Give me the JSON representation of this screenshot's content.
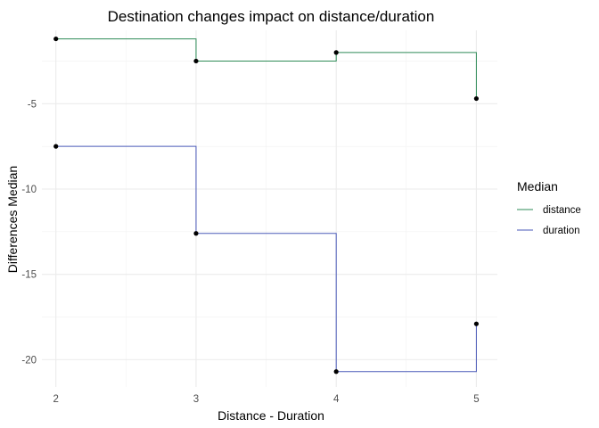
{
  "chart_data": {
    "type": "line",
    "step": true,
    "title": "Destination changes impact on distance/duration",
    "xlabel": "Distance - Duration",
    "ylabel": "Differences Median",
    "x": [
      2,
      3,
      4,
      5
    ],
    "x_ticks": [
      "2",
      "3",
      "4",
      "5"
    ],
    "y_ticks": [
      -5,
      -10,
      -15,
      -20
    ],
    "y_tick_labels": [
      "-5",
      "-10",
      "-15",
      "-20"
    ],
    "xlim": [
      1.9,
      5.15
    ],
    "ylim": [
      -21.6,
      -0.7
    ],
    "series": [
      {
        "name": "distance",
        "color": "#2e8b57",
        "values": [
          -1.2,
          -2.5,
          -2.0,
          -4.7
        ]
      },
      {
        "name": "duration",
        "color": "#4a5ab8",
        "values": [
          -7.5,
          -12.6,
          -20.7,
          -17.9
        ]
      }
    ],
    "legend": {
      "title": "Median",
      "placement": "right"
    },
    "grid": true
  }
}
